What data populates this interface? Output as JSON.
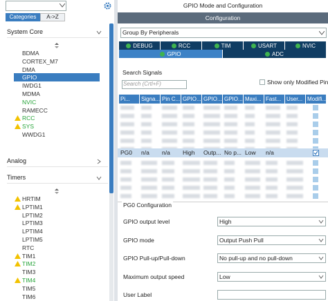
{
  "left_panel": {
    "tabs": [
      "Categories",
      "A->Z"
    ],
    "sections": [
      {
        "title": "System Core",
        "items": [
          {
            "label": "BDMA"
          },
          {
            "label": "CORTEX_M7"
          },
          {
            "label": "DMA"
          },
          {
            "label": "GPIO",
            "selected": true
          },
          {
            "label": "IWDG1"
          },
          {
            "label": "MDMA"
          },
          {
            "label": "NVIC",
            "active": true
          },
          {
            "label": "RAMECC"
          },
          {
            "label": "RCC",
            "active": true,
            "warning": true
          },
          {
            "label": "SYS",
            "active": true,
            "warning": true
          },
          {
            "label": "WWDG1"
          }
        ]
      },
      {
        "title": "Analog",
        "items": []
      },
      {
        "title": "Timers",
        "items": [
          {
            "label": "HRTIM",
            "warning": true
          },
          {
            "label": "LPTIM1",
            "warning": true
          },
          {
            "label": "LPTIM2"
          },
          {
            "label": "LPTIM3"
          },
          {
            "label": "LPTIM4"
          },
          {
            "label": "LPTIM5"
          },
          {
            "label": "RTC"
          },
          {
            "label": "TIM1",
            "warning": true
          },
          {
            "label": "TIM2",
            "active": true,
            "warning": true
          },
          {
            "label": "TIM3"
          },
          {
            "label": "TIM4",
            "active": true,
            "warning": true
          },
          {
            "label": "TIM5"
          },
          {
            "label": "TIM6"
          }
        ]
      }
    ]
  },
  "right_panel": {
    "title": "GPIO Mode and Configuration",
    "bar": "Configuration",
    "group_by": "Group By Peripherals",
    "tabs_row1": [
      "DEBUG",
      "RCC",
      "TIM",
      "USART",
      "NVIC"
    ],
    "tabs_row2": [
      "GPIO",
      "ADC"
    ],
    "search_label": "Search Signals",
    "search_placeholder": "Search (Crtl+F)",
    "modified_only": "Show only Modified Pins",
    "table": {
      "headers": [
        "Pi...",
        "Signa...",
        "Pin C...",
        "GPIO...",
        "GPIO...",
        "GPIO...",
        "Maxi...",
        "Fast...",
        "User...",
        "Modifi..."
      ],
      "selected_row": [
        "PG0",
        "n/a",
        "n/a",
        "High",
        "Outp...",
        "No p...",
        "Low",
        "n/a"
      ],
      "modified": true
    },
    "config": {
      "title": "PG0 Configuration",
      "fields": [
        {
          "label": "GPIO output level",
          "value": "High"
        },
        {
          "label": "GPIO mode",
          "value": "Output Push Pull"
        },
        {
          "label": "GPIO Pull-up/Pull-down",
          "value": "No pull-up and no pull-down"
        },
        {
          "label": "Maximum output speed",
          "value": "Low"
        },
        {
          "label": "User Label"
        }
      ]
    }
  }
}
